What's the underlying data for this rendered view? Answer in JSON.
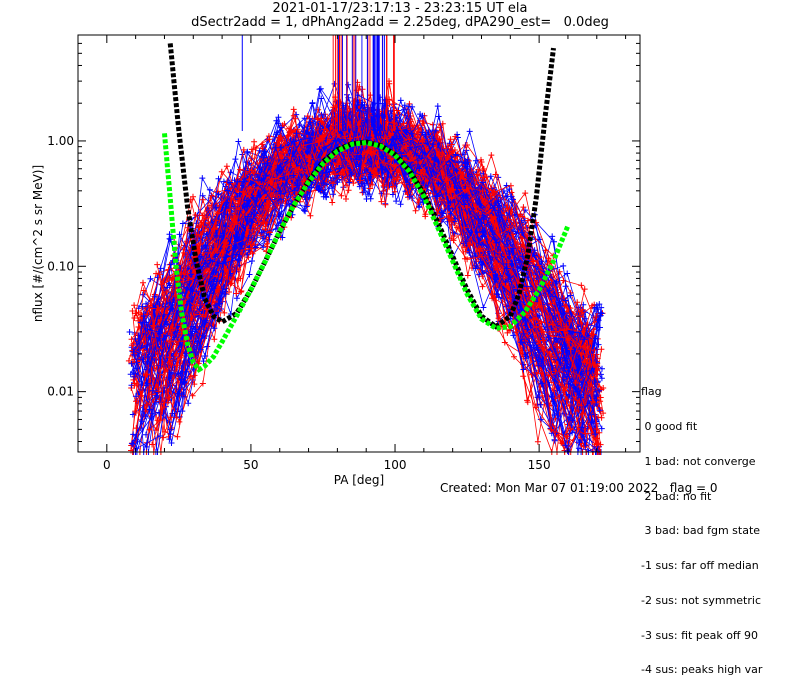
{
  "chart_data": {
    "type": "line",
    "title": "2021-01-17/23:17:13 - 23:23:15 UT ela",
    "subtitle": "dSectr2add = 1, dPhAng2add = 2.25deg, dPA290_est=   0.0deg",
    "xlabel": "PA [deg]",
    "ylabel": "nflux [#/(cm^2 s sr MeV)]",
    "xlim": [
      -10,
      185
    ],
    "ylim": [
      0.0033,
      7.0
    ],
    "yscale": "log",
    "x_ticks": [
      0,
      50,
      100,
      150
    ],
    "x_tick_labels": [
      "0",
      "50",
      "100",
      "150"
    ],
    "y_ticks": [
      0.01,
      0.1,
      1.0
    ],
    "y_tick_labels": [
      "0.01",
      "0.10",
      "1.00"
    ],
    "grid": false,
    "series": [
      {
        "color": "#000000",
        "style": "dashed-thick",
        "x": [
          22,
          25,
          28,
          31,
          34,
          37,
          40,
          45,
          50,
          55,
          60,
          65,
          70,
          75,
          80,
          85,
          90,
          95,
          100,
          105,
          110,
          115,
          120,
          125,
          130,
          135,
          140,
          143,
          146,
          149,
          152,
          155
        ],
        "y": [
          6.0,
          1.2,
          0.3,
          0.11,
          0.055,
          0.04,
          0.036,
          0.042,
          0.065,
          0.11,
          0.19,
          0.31,
          0.48,
          0.68,
          0.85,
          0.95,
          0.98,
          0.92,
          0.78,
          0.58,
          0.38,
          0.22,
          0.12,
          0.065,
          0.04,
          0.033,
          0.04,
          0.06,
          0.12,
          0.35,
          1.5,
          5.5
        ]
      },
      {
        "color": "#00ff00",
        "style": "dashed-thick",
        "x": [
          20,
          22,
          24,
          26,
          28,
          30,
          32,
          34,
          37,
          40,
          45,
          50,
          55,
          60,
          65,
          70,
          75,
          80,
          85,
          90,
          95,
          100,
          105,
          110,
          115,
          120,
          125,
          130,
          135,
          140,
          145,
          150,
          155,
          160
        ],
        "y": [
          1.15,
          0.35,
          0.1,
          0.042,
          0.024,
          0.017,
          0.015,
          0.016,
          0.019,
          0.025,
          0.04,
          0.065,
          0.11,
          0.19,
          0.31,
          0.47,
          0.66,
          0.83,
          0.94,
          0.97,
          0.91,
          0.77,
          0.57,
          0.36,
          0.2,
          0.11,
          0.06,
          0.038,
          0.032,
          0.033,
          0.043,
          0.065,
          0.11,
          0.21
        ]
      }
    ],
    "scatter_colors": [
      "#ff0000",
      "#0000ff"
    ],
    "legend": {
      "title": "flag",
      "entries": [
        " 0 good fit",
        " 1 bad: not converge",
        " 2 bad: no fit",
        " 3 bad: bad fgm state",
        "-1 sus: far off median",
        "-2 sus: not symmetric",
        "-3 sus: fit peak off 90",
        "-4 sus: peaks high var"
      ]
    }
  },
  "footer": "Created: Mon Mar 07 01:19:00 2022   flag = 0"
}
